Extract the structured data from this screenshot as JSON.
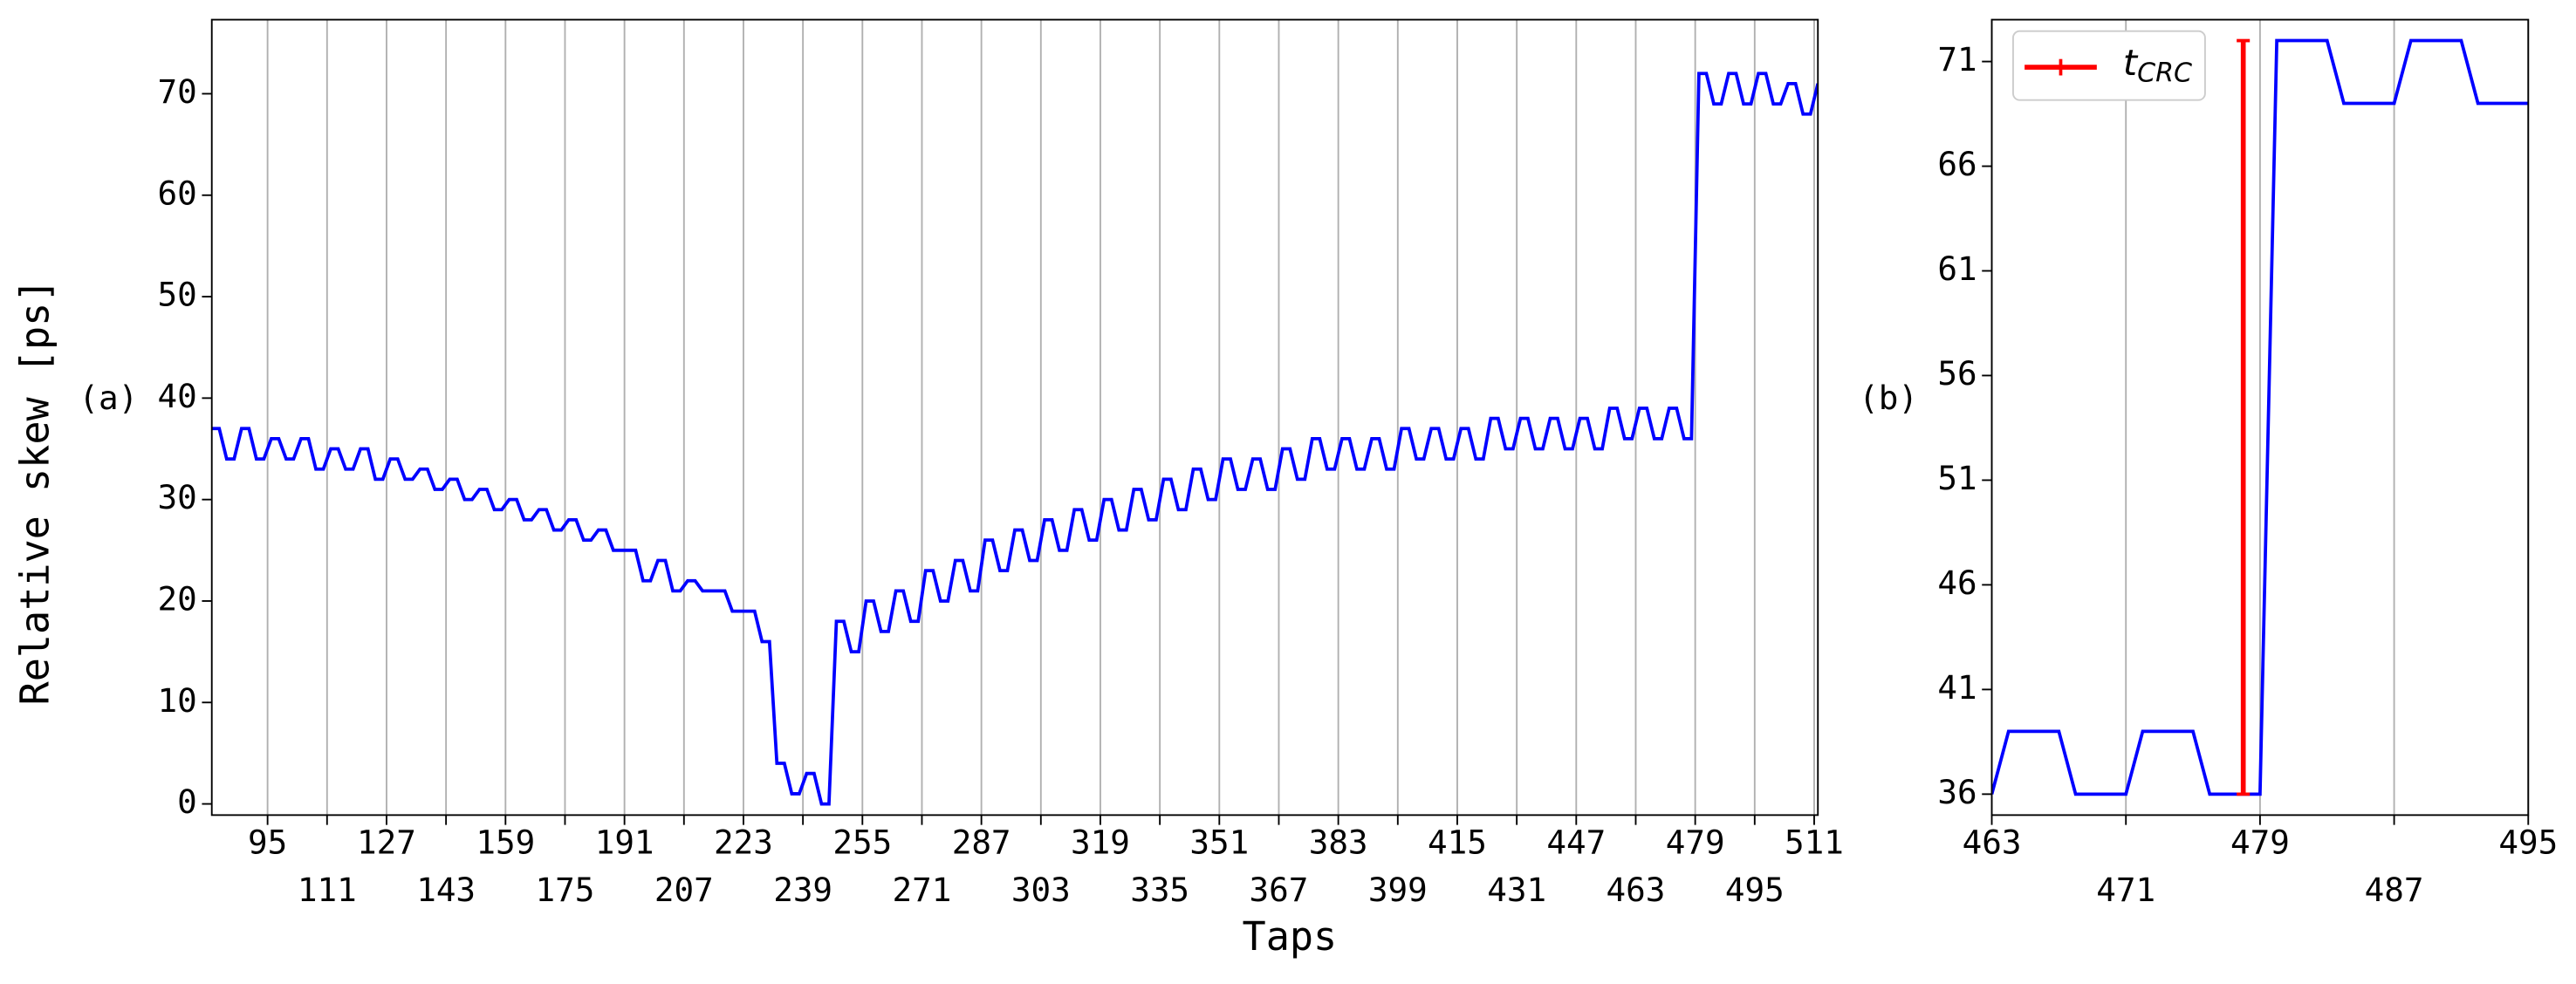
{
  "chart_data": [
    {
      "type": "line",
      "annotation": "(a)",
      "xlabel": "Taps",
      "ylabel": "Relative skew [ps]",
      "x": [
        80,
        82,
        84,
        86,
        88,
        90,
        92,
        94,
        96,
        98,
        100,
        102,
        104,
        106,
        108,
        110,
        112,
        114,
        116,
        118,
        120,
        122,
        124,
        126,
        128,
        130,
        132,
        134,
        136,
        138,
        140,
        142,
        144,
        146,
        148,
        150,
        152,
        154,
        156,
        158,
        160,
        162,
        164,
        166,
        168,
        170,
        172,
        174,
        176,
        178,
        180,
        182,
        184,
        186,
        188,
        190,
        192,
        194,
        196,
        198,
        200,
        202,
        204,
        206,
        208,
        210,
        212,
        214,
        216,
        218,
        220,
        222,
        224,
        226,
        228,
        230,
        232,
        234,
        236,
        238,
        240,
        242,
        244,
        246,
        248,
        250,
        252,
        254,
        256,
        258,
        260,
        262,
        264,
        266,
        268,
        270,
        272,
        274,
        276,
        278,
        280,
        282,
        284,
        286,
        288,
        290,
        292,
        294,
        296,
        298,
        300,
        302,
        304,
        306,
        308,
        310,
        312,
        314,
        316,
        318,
        320,
        322,
        324,
        326,
        328,
        330,
        332,
        334,
        336,
        338,
        340,
        342,
        344,
        346,
        348,
        350,
        352,
        354,
        356,
        358,
        360,
        362,
        364,
        366,
        368,
        370,
        372,
        374,
        376,
        378,
        380,
        382,
        384,
        386,
        388,
        390,
        392,
        394,
        396,
        398,
        400,
        402,
        404,
        406,
        408,
        410,
        412,
        414,
        416,
        418,
        420,
        422,
        424,
        426,
        428,
        430,
        432,
        434,
        436,
        438,
        440,
        442,
        444,
        446,
        448,
        450,
        452,
        454,
        456,
        458,
        460,
        462,
        464,
        466,
        468,
        470,
        472,
        474,
        476,
        478,
        480,
        482,
        484,
        486,
        488,
        490,
        492,
        494,
        496,
        498,
        500,
        502,
        504,
        506,
        508,
        510,
        512
      ],
      "values": [
        37,
        37,
        34,
        34,
        37,
        37,
        34,
        34,
        36,
        36,
        34,
        34,
        36,
        36,
        33,
        33,
        35,
        35,
        33,
        33,
        35,
        35,
        32,
        32,
        34,
        34,
        32,
        32,
        33,
        33,
        31,
        31,
        32,
        32,
        30,
        30,
        31,
        31,
        29,
        29,
        30,
        30,
        28,
        28,
        29,
        29,
        27,
        27,
        28,
        28,
        26,
        26,
        27,
        27,
        25,
        25,
        25,
        25,
        22,
        22,
        24,
        24,
        21,
        21,
        22,
        22,
        21,
        21,
        21,
        21,
        19,
        19,
        19,
        19,
        16,
        16,
        4,
        4,
        1,
        1,
        3,
        3,
        0,
        0,
        18,
        18,
        15,
        15,
        20,
        20,
        17,
        17,
        21,
        21,
        18,
        18,
        23,
        23,
        20,
        20,
        24,
        24,
        21,
        21,
        26,
        26,
        23,
        23,
        27,
        27,
        24,
        24,
        28,
        28,
        25,
        25,
        29,
        29,
        26,
        26,
        30,
        30,
        27,
        27,
        31,
        31,
        28,
        28,
        32,
        32,
        29,
        29,
        33,
        33,
        30,
        30,
        34,
        34,
        31,
        31,
        34,
        34,
        31,
        31,
        35,
        35,
        32,
        32,
        36,
        36,
        33,
        33,
        36,
        36,
        33,
        33,
        36,
        36,
        33,
        33,
        37,
        37,
        34,
        34,
        37,
        37,
        34,
        34,
        37,
        37,
        34,
        34,
        38,
        38,
        35,
        35,
        38,
        38,
        35,
        35,
        38,
        38,
        35,
        35,
        38,
        38,
        35,
        35,
        39,
        39,
        36,
        36,
        39,
        39,
        36,
        36,
        39,
        39,
        36,
        36,
        72,
        72,
        69,
        69,
        72,
        72,
        69,
        69,
        72,
        72,
        69,
        69,
        71,
        71,
        68,
        68,
        71
      ],
      "color": "#0000ff",
      "xlim": [
        80,
        512
      ],
      "ylim": [
        -1.1,
        77.3
      ],
      "xticks": [
        95,
        111,
        127,
        143,
        159,
        175,
        191,
        207,
        223,
        239,
        255,
        271,
        287,
        303,
        319,
        335,
        351,
        367,
        383,
        399,
        415,
        431,
        447,
        463,
        479,
        495,
        511
      ],
      "yticks": [
        0,
        10,
        20,
        30,
        40,
        50,
        60,
        70
      ],
      "grid": "x"
    },
    {
      "type": "line",
      "annotation": "(b)",
      "x": [
        463,
        464,
        465,
        466,
        467,
        468,
        469,
        470,
        471,
        472,
        473,
        474,
        475,
        476,
        477,
        478,
        479,
        480,
        481,
        482,
        483,
        484,
        485,
        486,
        487,
        488,
        489,
        490,
        491,
        492,
        493,
        494,
        495
      ],
      "values": [
        36,
        39,
        39,
        39,
        39,
        36,
        36,
        36,
        36,
        39,
        39,
        39,
        39,
        36,
        36,
        36,
        36,
        72,
        72,
        72,
        72,
        69,
        69,
        69,
        69,
        72,
        72,
        72,
        72,
        69,
        69,
        69,
        69
      ],
      "color": "#0000ff",
      "xlim": [
        463,
        495
      ],
      "ylim": [
        35,
        73
      ],
      "xticks": [
        463,
        471,
        479,
        487,
        495
      ],
      "yticks": [
        36,
        41,
        46,
        51,
        56,
        61,
        66,
        71
      ],
      "grid": "x",
      "legend": "upper left",
      "errorbar": {
        "name": "t",
        "name_subscript": "CRC",
        "color": "#ff0000",
        "x": 478,
        "low": 36,
        "high": 72
      }
    }
  ]
}
